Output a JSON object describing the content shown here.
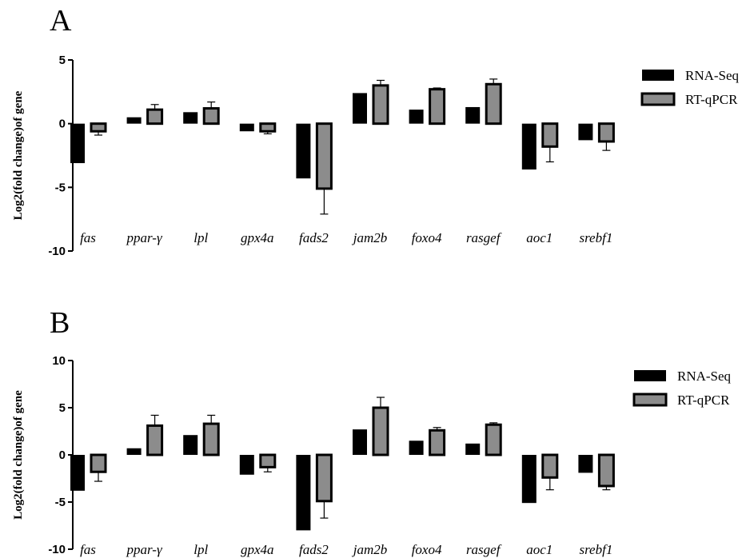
{
  "chart_data": [
    {
      "type": "bar",
      "panel_label": "A",
      "ylabel": "Log2(fold change)of gene",
      "ylim": [
        -10,
        5
      ],
      "yticks": [
        5,
        0,
        -5,
        -10
      ],
      "categories": [
        "fas",
        "ppar-γ",
        "lpl",
        "gpx4a",
        "fads2",
        "jam2b",
        "foxo4",
        "rasgef",
        "aoc1",
        "srebf1"
      ],
      "series": [
        {
          "name": "RNA-Seq",
          "color": "#000000",
          "values": [
            -3.1,
            0.5,
            0.9,
            -0.6,
            -4.3,
            2.4,
            1.1,
            1.3,
            -3.6,
            -1.3
          ],
          "errors": [
            0,
            0,
            0,
            0,
            0,
            0,
            0,
            0,
            0,
            0
          ]
        },
        {
          "name": "RT-qPCR",
          "color": "#8c8c8c",
          "values": [
            -0.6,
            1.1,
            1.2,
            -0.6,
            -5.1,
            3.0,
            2.7,
            3.1,
            -1.8,
            -1.4
          ],
          "errors": [
            0.3,
            0.4,
            0.5,
            0.2,
            2.0,
            0.4,
            0.1,
            0.4,
            1.2,
            0.7
          ]
        }
      ],
      "legend_position": "top-right"
    },
    {
      "type": "bar",
      "panel_label": "B",
      "ylabel": "Log2(fold change)of gene",
      "ylim": [
        -10,
        10
      ],
      "yticks": [
        10,
        5,
        0,
        -5,
        -10
      ],
      "categories": [
        "fas",
        "ppar-γ",
        "lpl",
        "gpx4a",
        "fads2",
        "jam2b",
        "foxo4",
        "rasgef",
        "aoc1",
        "srebf1"
      ],
      "series": [
        {
          "name": "RNA-Seq",
          "color": "#000000",
          "values": [
            -3.8,
            0.7,
            2.1,
            -2.1,
            -8.0,
            2.7,
            1.5,
            1.2,
            -5.1,
            -1.9
          ],
          "errors": [
            0,
            0,
            0,
            0,
            0,
            0,
            0,
            0,
            0,
            0
          ]
        },
        {
          "name": "RT-qPCR",
          "color": "#8c8c8c",
          "values": [
            -1.8,
            3.1,
            3.3,
            -1.3,
            -4.9,
            5.0,
            2.6,
            3.2,
            -2.4,
            -3.3
          ],
          "errors": [
            1.0,
            1.1,
            0.9,
            0.5,
            1.8,
            1.1,
            0.3,
            0.2,
            1.3,
            0.4
          ]
        }
      ],
      "legend_position": "top-right"
    }
  ]
}
